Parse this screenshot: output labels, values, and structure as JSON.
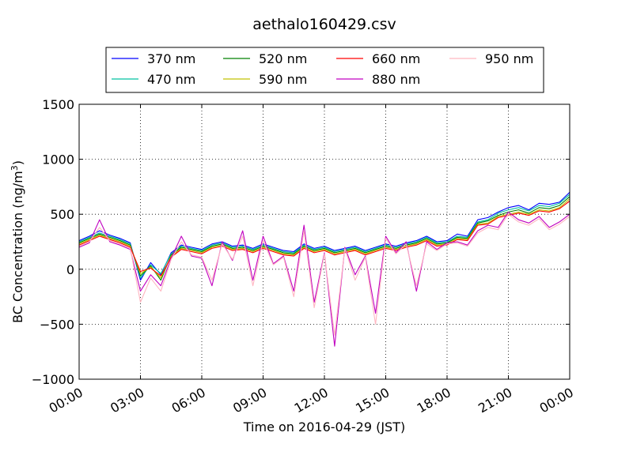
{
  "chart_data": {
    "type": "line",
    "title": "aethalo160429.csv",
    "xlabel": "Time on 2016-04-29 (JST)",
    "ylabel": "BC Concentration (ng/m",
    "ylabel_superscript": "3",
    "ylabel_suffix": ")",
    "xlim": [
      "2016-04-29 00:00",
      "2016-04-30 00:00"
    ],
    "ylim": [
      -1000,
      1500
    ],
    "x_ticks": [
      "00:00",
      "03:00",
      "06:00",
      "09:00",
      "12:00",
      "15:00",
      "18:00",
      "21:00",
      "00:00"
    ],
    "y_ticks": [
      "−1000",
      "−500",
      "0",
      "500",
      "1000",
      "1500"
    ],
    "y_tick_values": [
      -1000,
      -500,
      0,
      500,
      1000,
      1500
    ],
    "grid": true,
    "grid_style": "dotted",
    "legend_placement": "top-center",
    "legend_columns": 4,
    "x": [
      "00:00",
      "00:30",
      "01:00",
      "01:30",
      "02:00",
      "02:30",
      "03:00",
      "03:30",
      "04:00",
      "04:30",
      "05:00",
      "05:30",
      "06:00",
      "06:30",
      "07:00",
      "07:30",
      "08:00",
      "08:30",
      "09:00",
      "09:30",
      "10:00",
      "10:30",
      "11:00",
      "11:30",
      "12:00",
      "12:30",
      "13:00",
      "13:30",
      "14:00",
      "14:30",
      "15:00",
      "15:30",
      "16:00",
      "16:30",
      "17:00",
      "17:30",
      "18:00",
      "18:30",
      "19:00",
      "19:30",
      "20:00",
      "20:30",
      "21:00",
      "21:30",
      "22:00",
      "22:30",
      "23:00",
      "23:30",
      "00:00"
    ],
    "series": [
      {
        "name": "370 nm",
        "color": "#0000ff",
        "values": [
          260,
          300,
          350,
          310,
          280,
          240,
          -100,
          60,
          -50,
          150,
          220,
          200,
          180,
          230,
          250,
          210,
          220,
          190,
          230,
          200,
          170,
          160,
          230,
          190,
          210,
          170,
          190,
          210,
          170,
          200,
          230,
          210,
          240,
          260,
          300,
          250,
          260,
          320,
          300,
          450,
          470,
          520,
          560,
          580,
          540,
          600,
          590,
          610,
          700
        ]
      },
      {
        "name": "470 nm",
        "color": "#00c0a0",
        "values": [
          250,
          290,
          330,
          300,
          270,
          230,
          -80,
          40,
          -40,
          140,
          210,
          190,
          170,
          220,
          240,
          200,
          210,
          180,
          220,
          190,
          160,
          150,
          220,
          180,
          200,
          160,
          180,
          200,
          160,
          190,
          220,
          200,
          230,
          250,
          290,
          240,
          250,
          300,
          290,
          430,
          450,
          510,
          540,
          560,
          530,
          580,
          570,
          600,
          680
        ]
      },
      {
        "name": "520 nm",
        "color": "#008000",
        "values": [
          240,
          280,
          320,
          290,
          260,
          220,
          -60,
          30,
          -100,
          130,
          200,
          180,
          160,
          210,
          230,
          190,
          200,
          170,
          210,
          180,
          150,
          140,
          210,
          170,
          190,
          150,
          170,
          190,
          150,
          180,
          210,
          190,
          220,
          240,
          280,
          230,
          240,
          290,
          280,
          420,
          440,
          490,
          520,
          540,
          510,
          560,
          550,
          580,
          660
        ]
      },
      {
        "name": "590 nm",
        "color": "#c0c000",
        "values": [
          230,
          270,
          310,
          280,
          250,
          210,
          -40,
          20,
          -80,
          120,
          190,
          170,
          150,
          200,
          220,
          180,
          190,
          160,
          200,
          170,
          140,
          130,
          200,
          160,
          180,
          140,
          160,
          180,
          140,
          170,
          200,
          180,
          210,
          230,
          270,
          220,
          230,
          280,
          270,
          410,
          420,
          480,
          500,
          520,
          500,
          540,
          530,
          560,
          640
        ]
      },
      {
        "name": "660 nm",
        "color": "#ff0000",
        "values": [
          220,
          260,
          300,
          270,
          240,
          200,
          -20,
          10,
          -60,
          110,
          180,
          160,
          140,
          190,
          210,
          170,
          180,
          150,
          190,
          160,
          130,
          120,
          190,
          150,
          170,
          130,
          150,
          170,
          130,
          160,
          190,
          170,
          200,
          220,
          260,
          210,
          220,
          270,
          260,
          400,
          410,
          470,
          490,
          510,
          490,
          530,
          520,
          550,
          620
        ]
      },
      {
        "name": "880 nm",
        "color": "#c000c0",
        "values": [
          200,
          240,
          450,
          250,
          220,
          180,
          -200,
          -50,
          -150,
          100,
          300,
          120,
          100,
          -150,
          250,
          80,
          350,
          -100,
          300,
          50,
          120,
          -200,
          400,
          -300,
          150,
          -700,
          200,
          -50,
          120,
          -400,
          300,
          150,
          250,
          -200,
          250,
          180,
          240,
          250,
          220,
          350,
          400,
          380,
          520,
          450,
          420,
          480,
          380,
          430,
          500
        ]
      },
      {
        "name": "950 nm",
        "color": "#ffb6c1",
        "values": [
          210,
          250,
          380,
          260,
          230,
          190,
          -300,
          -80,
          -200,
          90,
          250,
          130,
          110,
          -100,
          230,
          90,
          300,
          -150,
          260,
          40,
          110,
          -250,
          350,
          -350,
          140,
          -600,
          190,
          -100,
          110,
          -500,
          280,
          140,
          230,
          -150,
          230,
          170,
          230,
          240,
          210,
          330,
          380,
          360,
          500,
          430,
          400,
          460,
          360,
          410,
          480
        ]
      }
    ]
  }
}
